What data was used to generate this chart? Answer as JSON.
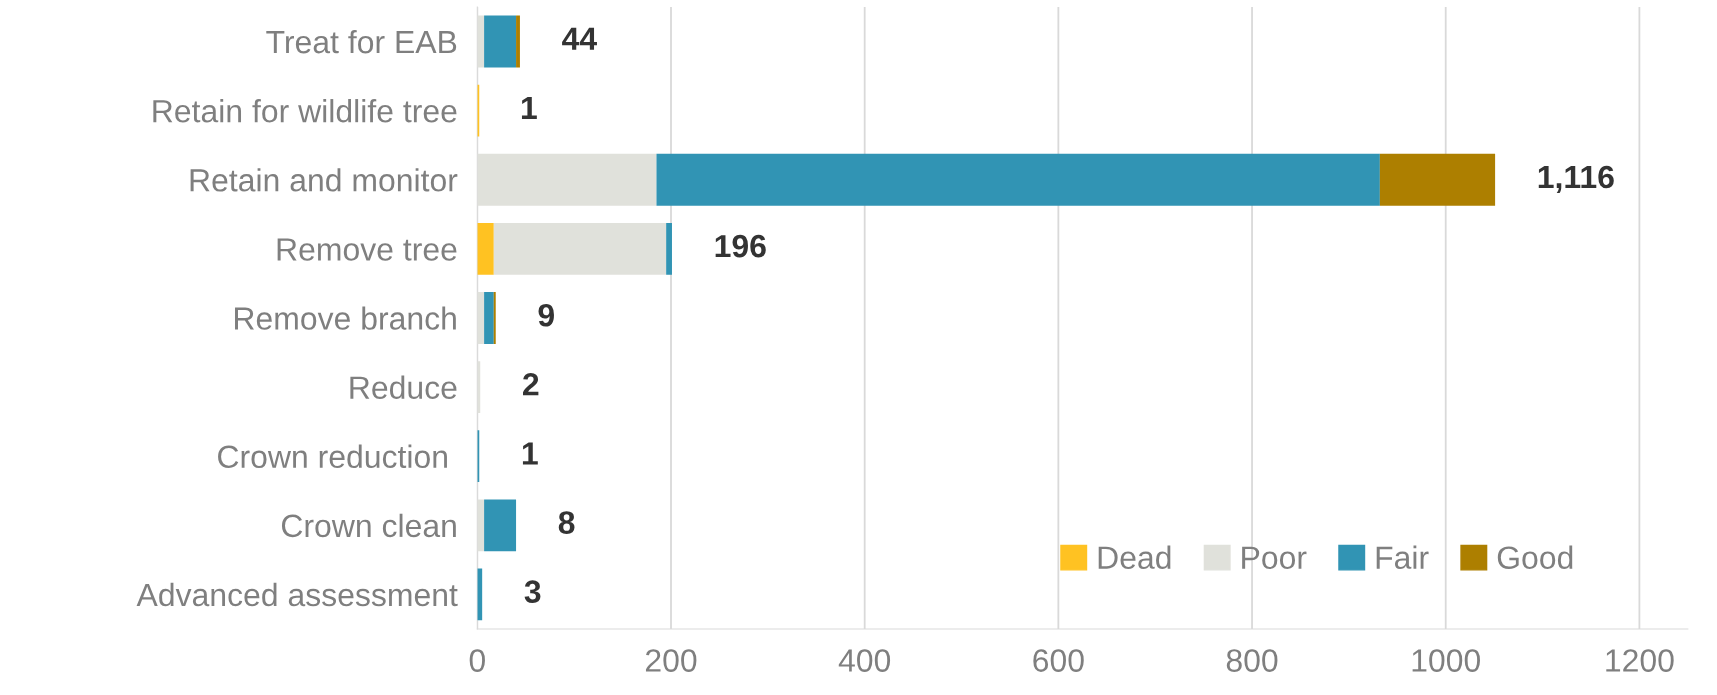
{
  "chart_data": {
    "type": "bar",
    "orientation": "horizontal",
    "stacked": true,
    "categories": [
      "Treat for EAB",
      "Retain for wildlife tree",
      "Retain and monitor",
      "Remove tree",
      "Remove branch",
      "Reduce",
      "Crown reduction ",
      "Crown clean",
      "Advanced assessment"
    ],
    "series": [
      {
        "name": "Dead",
        "color": "#ffc222",
        "values": [
          0,
          2,
          0,
          17,
          0,
          0,
          0,
          0,
          0
        ]
      },
      {
        "name": "Poor",
        "color": "#e0e1db",
        "values": [
          7,
          0,
          185,
          178,
          7,
          3,
          0,
          7,
          0
        ]
      },
      {
        "name": "Fair",
        "color": "#3194b4",
        "values": [
          33,
          0,
          747,
          6,
          10,
          0,
          2,
          33,
          5
        ]
      },
      {
        "name": "Good",
        "color": "#ad7f00",
        "values": [
          4,
          0,
          119,
          0,
          2,
          0,
          0,
          0,
          0
        ]
      }
    ],
    "annotations": [
      {
        "text": "44",
        "x": 44,
        "y": "Treat for EAB"
      },
      {
        "text": "1",
        "x": 1,
        "y": "Retain for wildlife tree"
      },
      {
        "text": "1,116",
        "x": 1051,
        "y": "Retain and monitor"
      },
      {
        "text": "196",
        "x": 201,
        "y": "Remove tree"
      },
      {
        "text": "9",
        "x": 19,
        "y": "Remove branch"
      },
      {
        "text": "2",
        "x": 3,
        "y": "Reduce"
      },
      {
        "text": "1",
        "x": 2,
        "y": "Crown reduction "
      },
      {
        "text": "8",
        "x": 40,
        "y": "Crown clean"
      },
      {
        "text": "3",
        "x": 5,
        "y": "Advanced assessment"
      }
    ],
    "xlim": [
      0,
      1250
    ],
    "xticks": [
      0,
      200,
      400,
      600,
      800,
      1000,
      1200
    ],
    "grid": "x",
    "legend": "bottom right"
  }
}
